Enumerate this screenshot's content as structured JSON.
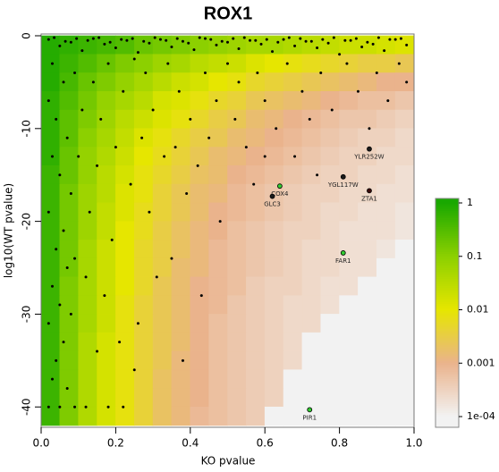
{
  "chart_data": {
    "type": "heatmap",
    "title": "ROX1",
    "x_label": "KO pvalue",
    "y_label": "log10(WT pvalue)",
    "xlim": [
      0,
      1
    ],
    "ylim": [
      -42,
      0
    ],
    "xticks": [
      {
        "value": 0,
        "label": "0.0"
      },
      0.2,
      0.4,
      0.6,
      0.8,
      {
        "value": 1,
        "label": "1.0"
      }
    ],
    "yticks": [
      0,
      -10,
      -20,
      -30,
      -40
    ],
    "heatmap": {
      "x_bins": [
        0,
        0.05,
        0.1,
        0.15,
        0.2,
        0.25,
        0.3,
        0.35,
        0.4,
        0.45,
        0.5,
        0.55,
        0.6,
        0.65,
        0.7,
        0.75,
        0.8,
        0.85,
        0.9,
        0.95,
        1
      ],
      "y_bins": [
        0,
        -2,
        -4,
        -6,
        -8,
        -10,
        -12,
        -14,
        -16,
        -18,
        -20,
        -22,
        -24,
        -26,
        -28,
        -30,
        -32,
        -34,
        -36,
        -38,
        -40,
        -42
      ],
      "values": [
        [
          0.79,
          0.63,
          0.5,
          0.4,
          0.32,
          0.2,
          0.16,
          0.13,
          0.1,
          0.079,
          0.063,
          0.05,
          0.05,
          0.04,
          0.032,
          0.025,
          0.02,
          0.02,
          0.016,
          0.013
        ],
        [
          0.79,
          0.5,
          0.32,
          0.2,
          0.13,
          0.1,
          0.063,
          0.05,
          0.032,
          0.025,
          0.02,
          0.013,
          0.01,
          0.0079,
          0.0063,
          0.005,
          0.004,
          0.0032,
          0.0032,
          0.0025
        ],
        [
          0.79,
          0.4,
          0.2,
          0.13,
          0.079,
          0.05,
          0.032,
          0.02,
          0.016,
          0.01,
          0.0079,
          0.005,
          0.004,
          0.0032,
          0.0025,
          0.002,
          0.0016,
          0.0013,
          0.001,
          0.001
        ],
        [
          0.63,
          0.32,
          0.16,
          0.079,
          0.05,
          0.032,
          0.016,
          0.013,
          0.0079,
          0.005,
          0.004,
          0.0025,
          0.002,
          0.0016,
          0.0013,
          0.001,
          0.00079,
          0.00063,
          0.00063,
          0.0005
        ],
        [
          0.63,
          0.25,
          0.13,
          0.063,
          0.032,
          0.02,
          0.013,
          0.0079,
          0.005,
          0.0032,
          0.0025,
          0.0016,
          0.0013,
          0.001,
          0.00079,
          0.00063,
          0.0005,
          0.0005,
          0.0004,
          0.00032
        ],
        [
          0.63,
          0.25,
          0.1,
          0.05,
          0.025,
          0.013,
          0.0079,
          0.005,
          0.0032,
          0.0025,
          0.0016,
          0.0013,
          0.001,
          0.00079,
          0.00063,
          0.0005,
          0.0004,
          0.00032,
          0.00032,
          0.00025
        ],
        [
          0.63,
          0.2,
          0.079,
          0.04,
          0.02,
          0.01,
          0.0063,
          0.004,
          0.0025,
          0.0016,
          0.0013,
          0.001,
          0.00079,
          0.00063,
          0.0005,
          0.0004,
          0.00032,
          0.00032,
          0.00025,
          0.00025
        ],
        [
          0.5,
          0.2,
          0.079,
          0.032,
          0.016,
          0.0079,
          0.005,
          0.0032,
          0.002,
          0.0016,
          0.001,
          0.00079,
          0.00063,
          0.0005,
          0.0004,
          0.00032,
          0.00032,
          0.00025,
          0.00025,
          0.0002
        ],
        [
          0.5,
          0.16,
          0.063,
          0.032,
          0.013,
          0.0079,
          0.004,
          0.0025,
          0.0016,
          0.0013,
          0.00079,
          0.00063,
          0.0005,
          0.0004,
          0.00032,
          0.00032,
          0.00025,
          0.00025,
          0.0002,
          0.0002
        ],
        [
          0.5,
          0.16,
          0.063,
          0.025,
          0.013,
          0.0063,
          0.004,
          0.0025,
          0.0016,
          0.001,
          0.00079,
          0.00063,
          0.0005,
          0.0004,
          0.00032,
          0.00025,
          0.00025,
          0.0002,
          0.0002,
          0.00016
        ],
        [
          0.5,
          0.16,
          0.063,
          0.025,
          0.01,
          0.0063,
          0.0032,
          0.002,
          0.0013,
          0.001,
          0.00063,
          0.0005,
          0.0004,
          0.00032,
          0.00032,
          0.00025,
          0.0002,
          0.0002,
          0.0002,
          0.00016
        ],
        [
          0.5,
          0.16,
          0.05,
          0.02,
          0.01,
          0.005,
          0.0032,
          0.002,
          0.0013,
          0.00079,
          0.00063,
          0.0005,
          0.0004,
          0.00032,
          0.00025,
          0.00025,
          0.0002,
          0.0002,
          0.00016,
          0.0001
        ],
        [
          0.5,
          0.16,
          0.05,
          0.02,
          0.01,
          0.005,
          0.0032,
          0.0016,
          0.0013,
          0.00079,
          0.00063,
          0.0005,
          0.0004,
          0.00032,
          0.00025,
          0.00025,
          0.0002,
          0.0002,
          0.0001,
          0.0001
        ],
        [
          0.5,
          0.13,
          0.05,
          0.02,
          0.01,
          0.005,
          0.0025,
          0.0016,
          0.001,
          0.00079,
          0.00063,
          0.0004,
          0.00032,
          0.00032,
          0.00025,
          0.0002,
          0.0002,
          0.0001,
          0.0001,
          0.0001
        ],
        [
          0.5,
          0.13,
          0.05,
          0.02,
          0.0079,
          0.004,
          0.0025,
          0.0016,
          0.001,
          0.00079,
          0.0005,
          0.0004,
          0.00032,
          0.00025,
          0.00025,
          0.0002,
          0.0001,
          0.0001,
          0.0001,
          0.0001
        ],
        [
          0.5,
          0.13,
          0.05,
          0.02,
          0.0079,
          0.004,
          0.0025,
          0.0016,
          0.001,
          0.00063,
          0.0005,
          0.0004,
          0.00032,
          0.00025,
          0.00025,
          0.0001,
          0.0001,
          0.0001,
          0.0001,
          0.0001
        ],
        [
          0.5,
          0.13,
          0.04,
          0.016,
          0.0079,
          0.004,
          0.0025,
          0.0016,
          0.001,
          0.00063,
          0.0005,
          0.0004,
          0.00032,
          0.00025,
          0.0001,
          0.0001,
          0.0001,
          0.0001,
          0.0001,
          0.0001
        ],
        [
          0.5,
          0.13,
          0.04,
          0.016,
          0.0079,
          0.004,
          0.0025,
          0.0013,
          0.001,
          0.00063,
          0.0005,
          0.0004,
          0.00032,
          0.00025,
          0.0001,
          0.0001,
          0.0001,
          0.0001,
          0.0001,
          0.0001
        ],
        [
          0.5,
          0.13,
          0.04,
          0.016,
          0.0079,
          0.004,
          0.002,
          0.0013,
          0.001,
          0.00063,
          0.0005,
          0.0004,
          0.00032,
          0.0001,
          0.0001,
          0.0001,
          0.0001,
          0.0001,
          0.0001,
          0.0001
        ],
        [
          0.5,
          0.13,
          0.04,
          0.016,
          0.0079,
          0.004,
          0.002,
          0.0013,
          0.001,
          0.00063,
          0.0005,
          0.0004,
          0.00032,
          0.0001,
          0.0001,
          0.0001,
          0.0001,
          0.0001,
          0.0001,
          0.0001
        ],
        [
          0.5,
          0.13,
          0.04,
          0.016,
          0.0079,
          0.004,
          0.002,
          0.0013,
          0.00079,
          0.00063,
          0.0005,
          0.0004,
          0.0001,
          0.0001,
          0.0001,
          0.0001,
          0.0001,
          0.0001,
          0.0001,
          0.0001
        ]
      ]
    },
    "colorbar": {
      "scale": "log",
      "ticks": [
        1,
        0.1,
        0.01,
        0.001,
        {
          "value": 0.0001,
          "label": "1e-04"
        }
      ],
      "colors": [
        "#19a800",
        "#8cd000",
        "#e6e600",
        "#eab38c",
        "#f2f2f2"
      ]
    },
    "points": {
      "color": "#000000",
      "x": [
        0.02,
        0.05,
        0.08,
        0.11,
        0.14,
        0.17,
        0.2,
        0.23,
        0.26,
        0.29,
        0.32,
        0.35,
        0.38,
        0.41,
        0.44,
        0.47,
        0.5,
        0.53,
        0.56,
        0.59,
        0.62,
        0.65,
        0.68,
        0.71,
        0.74,
        0.77,
        0.8,
        0.83,
        0.86,
        0.89,
        0.92,
        0.95,
        0.98,
        0.035,
        0.065,
        0.095,
        0.125,
        0.155,
        0.185,
        0.215,
        0.245,
        0.275,
        0.305,
        0.335,
        0.365,
        0.395,
        0.425,
        0.455,
        0.485,
        0.515,
        0.545,
        0.575,
        0.605,
        0.635,
        0.665,
        0.695,
        0.725,
        0.755,
        0.785,
        0.815,
        0.845,
        0.875,
        0.905,
        0.935,
        0.965,
        0.03,
        0.06,
        0.02,
        0.09,
        0.04,
        0.07,
        0.11,
        0.03,
        0.05,
        0.08,
        0.02,
        0.06,
        0.1,
        0.04,
        0.07,
        0.03,
        0.05,
        0.09,
        0.02,
        0.06,
        0.04,
        0.08,
        0.03,
        0.05,
        0.02,
        0.12,
        0.09,
        0.07,
        0.13,
        0.12,
        0.14,
        0.16,
        0.15,
        0.18,
        0.22,
        0.25,
        0.2,
        0.24,
        0.19,
        0.17,
        0.21,
        0.18,
        0.22,
        0.28,
        0.3,
        0.27,
        0.33,
        0.29,
        0.31,
        0.26,
        0.34,
        0.37,
        0.4,
        0.36,
        0.42,
        0.39,
        0.35,
        0.44,
        0.47,
        0.45,
        0.5,
        0.53,
        0.52,
        0.55,
        0.58,
        0.6,
        0.63,
        0.57,
        0.48,
        0.66,
        0.7,
        0.72,
        0.68,
        0.75,
        0.78,
        0.82,
        0.85,
        0.9,
        0.93,
        0.96,
        0.98,
        0.88,
        0.74,
        0.6,
        0.43,
        0.38,
        0.25,
        0.15
      ],
      "y": [
        -0.4,
        -1.1,
        -0.7,
        -1.6,
        -0.3,
        -0.9,
        -1.3,
        -0.5,
        -1.8,
        -0.8,
        -0.4,
        -1.2,
        -0.6,
        -1.5,
        -0.3,
        -1.0,
        -0.7,
        -1.4,
        -0.5,
        -0.9,
        -1.7,
        -0.4,
        -1.1,
        -0.6,
        -1.3,
        -0.8,
        -2.0,
        -0.5,
        -1.2,
        -0.9,
        -1.6,
        -0.4,
        -1.0,
        -0.2,
        -0.6,
        -0.3,
        -0.5,
        -0.2,
        -0.7,
        -0.4,
        -0.3,
        -0.6,
        -0.2,
        -0.5,
        -0.3,
        -0.8,
        -0.2,
        -0.4,
        -0.6,
        -0.3,
        -0.2,
        -0.5,
        -0.4,
        -0.7,
        -0.2,
        -0.3,
        -0.6,
        -0.4,
        -0.2,
        -0.5,
        -0.3,
        -0.7,
        -0.2,
        -0.4,
        -0.3,
        -3,
        -5,
        -7,
        -4,
        -9,
        -11,
        -8,
        -13,
        -15,
        -17,
        -19,
        -21,
        -13,
        -23,
        -25,
        -27,
        -29,
        -24,
        -31,
        -33,
        -35,
        -30,
        -37,
        -40,
        -40,
        -40,
        -40,
        -38,
        -19,
        -26,
        -5,
        -9,
        -14,
        -3,
        -6,
        -2.5,
        -12,
        -16,
        -22,
        -28,
        -33,
        -40,
        -40,
        -4,
        -8,
        -11,
        -13,
        -19,
        -26,
        -31,
        -3,
        -6,
        -9,
        -12,
        -14,
        -17,
        -24,
        -4,
        -7,
        -11,
        -3,
        -5,
        -9,
        -12,
        -4,
        -7,
        -10,
        -16,
        -20,
        -3,
        -6,
        -9,
        -13,
        -4,
        -8,
        -3,
        -6,
        -4,
        -7,
        -3,
        -5,
        -10,
        -15,
        -13,
        -28,
        -35,
        -36,
        -34
      ]
    },
    "genes": [
      {
        "name": "YLR252W",
        "x": 0.88,
        "y": -12.2,
        "color": "#1a1a1a"
      },
      {
        "name": "YGL117W",
        "x": 0.81,
        "y": -15.2,
        "color": "#1a1a1a"
      },
      {
        "name": "ZTA1",
        "x": 0.88,
        "y": -16.7,
        "color": "#3a0a0a"
      },
      {
        "name": "COX4",
        "x": 0.64,
        "y": -16.2,
        "color": "#33cc33"
      },
      {
        "name": "GLC3",
        "x": 0.62,
        "y": -17.3,
        "color": "#1a1a1a"
      },
      {
        "name": "FAR1",
        "x": 0.81,
        "y": -23.4,
        "color": "#33cc33"
      },
      {
        "name": "PIR1",
        "x": 0.72,
        "y": -40.3,
        "color": "#33cc33"
      }
    ]
  }
}
